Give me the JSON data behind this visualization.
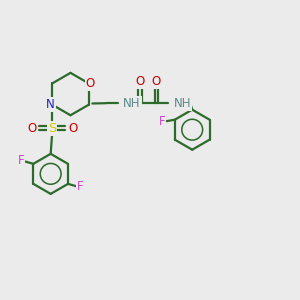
{
  "bg_color": "#ebebeb",
  "bond_color": "#2d6b2d",
  "N_color": "#2020cc",
  "O_color": "#cc0000",
  "S_color": "#cccc00",
  "F_color": "#cc44cc",
  "H_color": "#5a8a8a",
  "line_width": 1.6,
  "font_size": 8.5,
  "xlim": [
    0,
    10
  ],
  "ylim": [
    0,
    10
  ]
}
